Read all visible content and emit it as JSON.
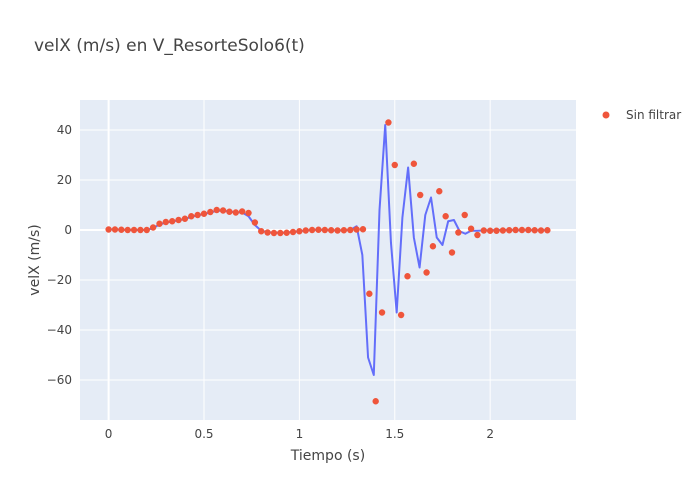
{
  "chart_data": {
    "type": "scatter",
    "title": "velX (m/s) en V_ResorteSolo6(t)",
    "xlabel": "Tiempo (s)",
    "ylabel": "velX (m/s)",
    "xlim": [
      -0.15,
      2.45
    ],
    "ylim": [
      -76,
      52
    ],
    "x_ticks": [
      0,
      0.5,
      1,
      1.5,
      2
    ],
    "x_tick_labels": [
      "0",
      "0.5",
      "1",
      "1.5",
      "2"
    ],
    "y_ticks": [
      -60,
      -40,
      -20,
      0,
      20,
      40
    ],
    "y_tick_labels": [
      "−60",
      "−40",
      "−20",
      "0",
      "20",
      "40"
    ],
    "grid": true,
    "legend_position": "top-right",
    "colors": {
      "plot_background": "#e5ecf6",
      "grid": "#ffffff",
      "line": "#636efa",
      "markers": "#ef553b",
      "text": "#444444"
    },
    "series": [
      {
        "name": "Sin filtrar",
        "mode": "markers",
        "x": [
          0,
          0.0333,
          0.0667,
          0.1,
          0.1333,
          0.1667,
          0.2,
          0.2333,
          0.2667,
          0.3,
          0.3333,
          0.3667,
          0.4,
          0.4333,
          0.4667,
          0.5,
          0.5333,
          0.5667,
          0.6,
          0.6333,
          0.6667,
          0.7,
          0.7333,
          0.7667,
          0.8,
          0.8333,
          0.8667,
          0.9,
          0.9333,
          0.9667,
          1.0,
          1.0333,
          1.0667,
          1.1,
          1.1333,
          1.1667,
          1.2,
          1.2333,
          1.2667,
          1.3,
          1.3333,
          1.3667,
          1.4,
          1.4333,
          1.4667,
          1.5,
          1.5333,
          1.5667,
          1.6,
          1.6333,
          1.6667,
          1.7,
          1.7333,
          1.7667,
          1.8,
          1.8333,
          1.8667,
          1.9,
          1.9333,
          1.9667,
          2.0,
          2.0333,
          2.0667,
          2.1,
          2.1333,
          2.1667,
          2.2,
          2.2333,
          2.2667,
          2.3
        ],
        "y": [
          0.2,
          0.2,
          0.1,
          0.0,
          0.0,
          0.0,
          0.0,
          1.0,
          2.5,
          3.2,
          3.5,
          4.0,
          4.5,
          5.5,
          6.0,
          6.5,
          7.2,
          8.0,
          7.8,
          7.3,
          7.0,
          7.4,
          6.8,
          3.0,
          -0.5,
          -1.0,
          -1.2,
          -1.2,
          -1.1,
          -0.8,
          -0.5,
          -0.2,
          0.0,
          0.1,
          0.0,
          -0.1,
          -0.2,
          -0.1,
          0.0,
          0.2,
          0.3,
          -25.5,
          -68.5,
          -33.0,
          43.0,
          26.0,
          -34.0,
          -18.5,
          26.5,
          14.0,
          -17.0,
          -6.5,
          15.5,
          5.5,
          -9.0,
          -1.0,
          6.0,
          0.5,
          -2.0,
          -0.2,
          -0.3,
          -0.3,
          -0.2,
          -0.1,
          0.0,
          0.0,
          0.0,
          -0.1,
          -0.2,
          -0.1
        ]
      },
      {
        "mode": "lines",
        "x": [
          0,
          0.0333,
          0.0667,
          0.1,
          0.1333,
          0.1667,
          0.2,
          0.2333,
          0.2667,
          0.3,
          0.3333,
          0.3667,
          0.4,
          0.4333,
          0.4667,
          0.5,
          0.5333,
          0.5667,
          0.6,
          0.6333,
          0.6667,
          0.7,
          0.7333,
          0.7667,
          0.8,
          0.8333,
          0.8667,
          0.9,
          0.9333,
          0.9667,
          1.0,
          1.0333,
          1.0667,
          1.1,
          1.1333,
          1.1667,
          1.2,
          1.2333,
          1.2667,
          1.3,
          1.33,
          1.36,
          1.39,
          1.42,
          1.45,
          1.48,
          1.51,
          1.54,
          1.57,
          1.6,
          1.63,
          1.66,
          1.69,
          1.72,
          1.75,
          1.78,
          1.81,
          1.84,
          1.87,
          1.9,
          1.93,
          1.96,
          2.0,
          2.0333,
          2.0667,
          2.1,
          2.1333,
          2.1667,
          2.2,
          2.2333,
          2.2667,
          2.3
        ],
        "y": [
          0.2,
          0.2,
          0.1,
          0.0,
          0.0,
          0.0,
          0.0,
          0.8,
          2.2,
          3.0,
          3.4,
          3.9,
          4.4,
          5.3,
          5.9,
          6.4,
          7.0,
          7.7,
          7.7,
          7.4,
          7.1,
          7.0,
          5.5,
          2.0,
          -0.3,
          -0.9,
          -1.1,
          -1.1,
          -1.0,
          -0.8,
          -0.5,
          -0.2,
          0.0,
          0.1,
          0.0,
          -0.1,
          -0.2,
          -0.1,
          0.0,
          1.5,
          -10.0,
          -51.0,
          -58.0,
          8.0,
          42.0,
          -5.0,
          -33.0,
          5.0,
          25.0,
          -3.0,
          -15.0,
          6.0,
          13.0,
          -3.0,
          -6.0,
          3.5,
          4.0,
          -0.5,
          -1.5,
          -0.3,
          -0.3,
          -0.2,
          -0.1,
          0.0,
          0.0,
          0.0,
          -0.1,
          -0.2,
          -0.1,
          -0.1,
          -0.1,
          -0.1
        ]
      }
    ]
  }
}
